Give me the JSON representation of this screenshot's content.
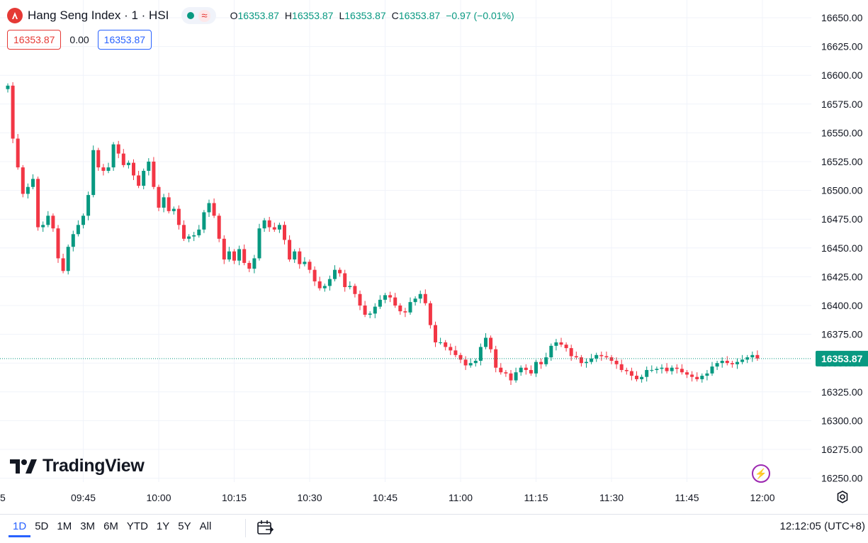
{
  "header": {
    "title": "Hang Seng Index · 1 · HSI",
    "ohlc": {
      "o_label": "O",
      "o": "16353.87",
      "h_label": "H",
      "h": "16353.87",
      "l_label": "L",
      "l": "16353.87",
      "c_label": "C",
      "c": "16353.87",
      "change": "−0.97 (−0.01%)"
    }
  },
  "price_boxes": {
    "bid": "16353.87",
    "spread": "0.00",
    "ask": "16353.87"
  },
  "brand": "TradingView",
  "timeframes": [
    "1D",
    "5D",
    "1M",
    "3M",
    "6M",
    "YTD",
    "1Y",
    "5Y",
    "All"
  ],
  "active_timeframe": "1D",
  "clock": "12:12:05 (UTC+8)",
  "colors": {
    "up": "#089981",
    "down": "#f23645",
    "accent": "#2962ff"
  },
  "chart_data": {
    "type": "candlestick",
    "title": "Hang Seng Index · 1 · HSI",
    "ylim": [
      16240,
      16660
    ],
    "y_ticks": [
      "16250.00",
      "16275.00",
      "16300.00",
      "16325.00",
      "16350.00",
      "16375.00",
      "16400.00",
      "16425.00",
      "16450.00",
      "16475.00",
      "16500.00",
      "16525.00",
      "16550.00",
      "16575.00",
      "16600.00",
      "16625.00",
      "16650.00"
    ],
    "x_ticks": [
      {
        "label": "5",
        "i": -1
      },
      {
        "label": "09:45",
        "i": 15
      },
      {
        "label": "10:00",
        "i": 30
      },
      {
        "label": "10:15",
        "i": 45
      },
      {
        "label": "10:30",
        "i": 60
      },
      {
        "label": "10:45",
        "i": 75
      },
      {
        "label": "11:00",
        "i": 90
      },
      {
        "label": "11:15",
        "i": 105
      },
      {
        "label": "11:30",
        "i": 120
      },
      {
        "label": "11:45",
        "i": 135
      },
      {
        "label": "12:00",
        "i": 150
      }
    ],
    "last_price": "16353.87",
    "grid": true,
    "closes": [
      16591,
      16545,
      16520,
      16497,
      16503,
      16510,
      16468,
      16470,
      16478,
      16467,
      16441,
      16430,
      16451,
      16462,
      16470,
      16478,
      16496,
      16535,
      16520,
      16517,
      16520,
      16540,
      16532,
      16522,
      16524,
      16513,
      16504,
      16517,
      16525,
      16503,
      16485,
      16494,
      16482,
      16484,
      16470,
      16458,
      16460,
      16461,
      16466,
      16481,
      16489,
      16478,
      16458,
      16440,
      16447,
      16439,
      16449,
      16437,
      16432,
      16441,
      16467,
      16474,
      16468,
      16466,
      16470,
      16457,
      16440,
      16447,
      16436,
      16438,
      16431,
      16421,
      16415,
      16417,
      16423,
      16431,
      16428,
      16416,
      16417,
      16410,
      16400,
      16392,
      16393,
      16399,
      16405,
      16409,
      16407,
      16400,
      16395,
      16394,
      16403,
      16406,
      16410,
      16402,
      16383,
      16368,
      16368,
      16364,
      16361,
      16357,
      16353,
      16348,
      16350,
      16352,
      16364,
      16372,
      16362,
      16346,
      16342,
      16341,
      16335,
      16342,
      16346,
      16344,
      16341,
      16351,
      16349,
      16355,
      16365,
      16368,
      16366,
      16363,
      16356,
      16355,
      16350,
      16351,
      16354,
      16357,
      16356,
      16355,
      16352,
      16349,
      16344,
      16343,
      16339,
      16336,
      16338,
      16344,
      16344,
      16345,
      16346,
      16343,
      16346,
      16345,
      16342,
      16340,
      16338,
      16336,
      16339,
      16341,
      16347,
      16350,
      16352,
      16350,
      16349,
      16351,
      16353,
      16355,
      16357,
      16354
    ],
    "opens": [
      16588,
      16591,
      16545,
      16520,
      16497,
      16503,
      16510,
      16468,
      16470,
      16478,
      16467,
      16441,
      16430,
      16451,
      16462,
      16470,
      16478,
      16496,
      16535,
      16520,
      16517,
      16520,
      16540,
      16532,
      16522,
      16524,
      16513,
      16504,
      16517,
      16525,
      16503,
      16485,
      16494,
      16482,
      16484,
      16470,
      16458,
      16460,
      16461,
      16466,
      16481,
      16489,
      16478,
      16458,
      16440,
      16447,
      16439,
      16449,
      16437,
      16432,
      16441,
      16467,
      16474,
      16468,
      16466,
      16470,
      16457,
      16440,
      16447,
      16436,
      16438,
      16431,
      16421,
      16415,
      16417,
      16423,
      16431,
      16428,
      16416,
      16417,
      16410,
      16400,
      16392,
      16393,
      16399,
      16405,
      16409,
      16407,
      16400,
      16395,
      16394,
      16403,
      16406,
      16410,
      16402,
      16383,
      16368,
      16368,
      16364,
      16361,
      16357,
      16353,
      16348,
      16350,
      16352,
      16364,
      16372,
      16362,
      16346,
      16342,
      16341,
      16335,
      16342,
      16346,
      16344,
      16341,
      16351,
      16349,
      16355,
      16365,
      16368,
      16366,
      16363,
      16356,
      16355,
      16350,
      16351,
      16354,
      16357,
      16356,
      16355,
      16352,
      16349,
      16344,
      16343,
      16339,
      16336,
      16338,
      16344,
      16344,
      16345,
      16346,
      16343,
      16346,
      16345,
      16342,
      16340,
      16338,
      16336,
      16339,
      16341,
      16347,
      16350,
      16352,
      16350,
      16349,
      16351,
      16353,
      16355,
      16357
    ]
  }
}
